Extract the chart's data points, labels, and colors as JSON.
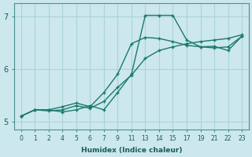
{
  "xlabel": "Humidex (Indice chaleur)",
  "bg_color": "#cce8ec",
  "grid_color": "#aad4d8",
  "line_color": "#1a7a6e",
  "xtick_labels": [
    "0",
    "1",
    "2",
    "4",
    "5",
    "6",
    "7",
    "9",
    "11",
    "13",
    "14",
    "15",
    "17",
    "19",
    "21",
    "22",
    "23"
  ],
  "yticks": [
    5,
    6,
    7
  ],
  "ylim": [
    4.85,
    7.25
  ],
  "series": [
    {
      "y": [
        5.1,
        5.22,
        5.22,
        5.18,
        5.22,
        5.3,
        5.22,
        5.55,
        5.9,
        7.02,
        7.02,
        7.02,
        6.55,
        6.42,
        6.43,
        6.35,
        6.62
      ]
    },
    {
      "y": [
        5.1,
        5.22,
        5.22,
        5.28,
        5.35,
        5.28,
        5.55,
        5.9,
        6.48,
        6.6,
        6.58,
        6.52,
        6.45,
        6.42,
        6.4,
        6.42,
        6.62
      ]
    },
    {
      "y": [
        5.1,
        5.22,
        5.2,
        5.22,
        5.3,
        5.25,
        5.38,
        5.65,
        5.88,
        6.2,
        6.35,
        6.42,
        6.48,
        6.52,
        6.55,
        6.58,
        6.65
      ]
    }
  ]
}
